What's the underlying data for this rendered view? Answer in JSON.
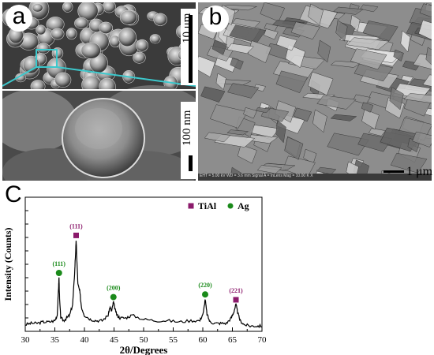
{
  "panels": {
    "a": {
      "letter": "a",
      "scale_top": "10 μm",
      "scale_bottom": "100 nm"
    },
    "b": {
      "letter": "b",
      "scale": "1 μm",
      "info_text": "EHT = 5.00 kV   WD = 3.6 mm   Signal A = InLens   Mag = 10.00 K X"
    },
    "c": {
      "letter": "C"
    }
  },
  "colors": {
    "tial": "#8b1a6b",
    "ag": "#1a8a1a",
    "zoom": "#3cc8cc",
    "line": "#000000"
  },
  "chart_data": {
    "type": "line",
    "title": "",
    "xlabel": "2θ/Degrees",
    "ylabel": "Intensity (Counts)",
    "xlim": [
      30,
      70
    ],
    "ylim": [
      0,
      100
    ],
    "xticks": [
      30,
      35,
      40,
      45,
      50,
      55,
      60,
      65,
      70
    ],
    "y_tick_labels_shown": false,
    "legend": {
      "position": "top-right",
      "entries": [
        {
          "name": "TiAl",
          "marker": "square",
          "color": "#8b1a6b"
        },
        {
          "name": "Ag",
          "marker": "circle",
          "color": "#1a8a1a"
        }
      ]
    },
    "peaks": [
      {
        "x": 35.7,
        "label": "(111)",
        "phase": "Ag",
        "y": 40
      },
      {
        "x": 38.6,
        "label": "(111)",
        "phase": "TiAl",
        "y": 68
      },
      {
        "x": 44.9,
        "label": "(200)",
        "phase": "Ag",
        "y": 22
      },
      {
        "x": 60.4,
        "label": "(220)",
        "phase": "Ag",
        "y": 24
      },
      {
        "x": 65.6,
        "label": "(221)",
        "phase": "TiAl",
        "y": 20
      }
    ],
    "series": [
      {
        "x": [
          30,
          31,
          32,
          33,
          34,
          35,
          35.4,
          35.6,
          35.7,
          35.8,
          36.0,
          36.5,
          37,
          37.5,
          38.0,
          38.3,
          38.5,
          38.6,
          38.7,
          38.9,
          39.2,
          39.5,
          40,
          41,
          42,
          43,
          44,
          44.3,
          44.6,
          44.9,
          45.2,
          45.5,
          46,
          47,
          48,
          50,
          52,
          54,
          56,
          58,
          59.5,
          60.1,
          60.4,
          60.7,
          61.2,
          62,
          63,
          64,
          64.8,
          65.2,
          65.6,
          65.9,
          66.3,
          67,
          68,
          69,
          70
        ],
        "y": [
          5,
          6,
          6,
          7,
          7,
          8,
          12,
          30,
          40,
          24,
          10,
          8,
          10,
          12,
          20,
          40,
          58,
          68,
          55,
          35,
          30,
          18,
          12,
          9,
          8,
          8,
          12,
          18,
          15,
          22,
          16,
          12,
          10,
          10,
          12,
          9,
          8,
          8,
          7,
          8,
          8,
          14,
          24,
          13,
          7,
          6,
          6,
          6,
          10,
          14,
          20,
          14,
          8,
          5,
          4,
          4,
          4
        ]
      }
    ]
  }
}
